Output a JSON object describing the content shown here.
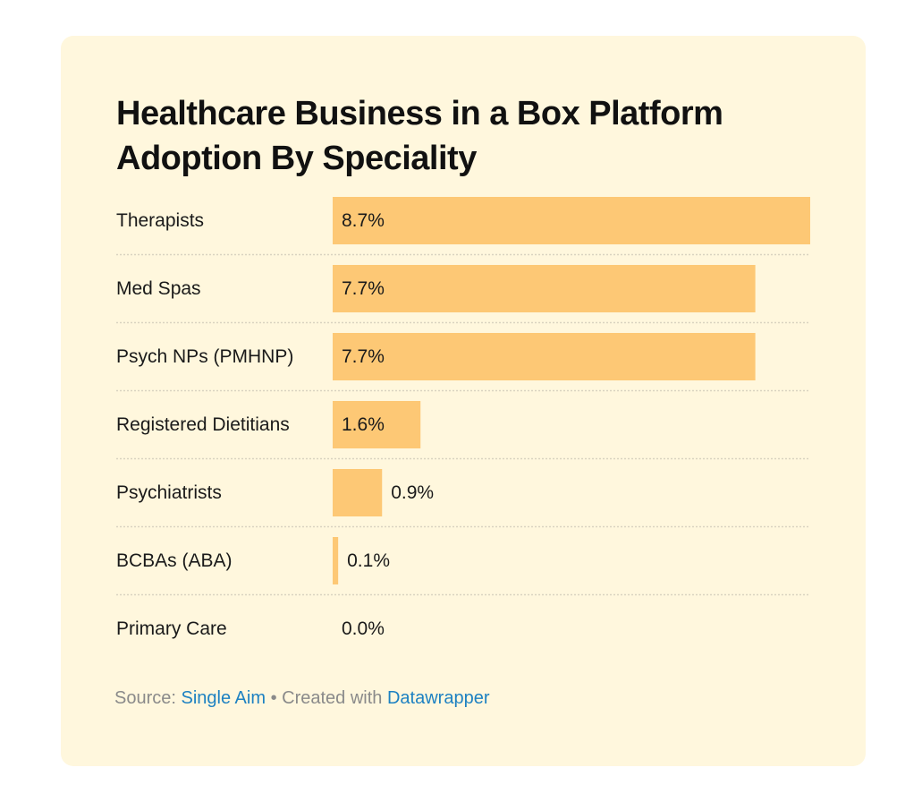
{
  "title": "Healthcare Business in a Box Platform Adoption By Speciality",
  "chart_data": {
    "type": "bar",
    "orientation": "horizontal",
    "title": "Healthcare Business in a Box Platform Adoption By Speciality",
    "categories": [
      "Therapists",
      "Med Spas",
      "Psych NPs (PMHNP)",
      "Registered Dietitians",
      "Psychiatrists",
      "BCBAs (ABA)",
      "Primary Care"
    ],
    "values": [
      8.7,
      7.7,
      7.7,
      1.6,
      0.9,
      0.1,
      0.0
    ],
    "value_labels": [
      "8.7%",
      "7.7%",
      "7.7%",
      "1.6%",
      "0.9%",
      "0.1%",
      "0.0%"
    ],
    "xlim": [
      0,
      8.7
    ],
    "xlabel": "",
    "ylabel": "",
    "grid": false,
    "legend": "none",
    "bar_color": "#fdc875",
    "separator_color": "#d9d3c0"
  },
  "footer": {
    "source_prefix": "Source:",
    "source_name": "Single Aim",
    "separator": "•",
    "created_prefix": "Created with",
    "created_tool": "Datawrapper"
  },
  "colors": {
    "card_background": "#fff7dd",
    "link": "#1d81c2",
    "footer_text": "#8a8a8a"
  }
}
